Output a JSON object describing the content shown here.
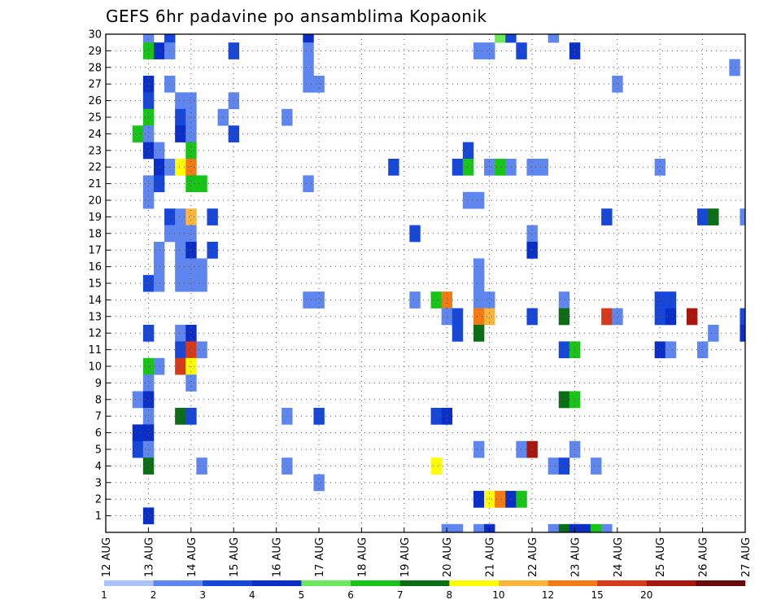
{
  "chart_data": {
    "type": "heatmap",
    "title": "GEFS 6hr padavine po ansamblima Kopaonik",
    "xlabel": "",
    "ylabel": "",
    "x_tick_labels": [
      "12 AUG",
      "13 AUG",
      "14 AUG",
      "15 AUG",
      "16 AUG",
      "17 AUG",
      "18 AUG",
      "19 AUG",
      "20 AUG",
      "21 AUG",
      "22 AUG",
      "23 AUG",
      "24 AUG",
      "25 AUG",
      "26 AUG",
      "27 AUG"
    ],
    "y_tick_labels": [
      "1",
      "2",
      "3",
      "4",
      "5",
      "6",
      "7",
      "8",
      "9",
      "10",
      "11",
      "12",
      "13",
      "14",
      "15",
      "16",
      "17",
      "18",
      "19",
      "20",
      "21",
      "22",
      "23",
      "24",
      "25",
      "26",
      "27",
      "28",
      "29",
      "30"
    ],
    "xlim": [
      0,
      60
    ],
    "ylim": [
      0,
      30
    ],
    "grid": true,
    "x_unit": "6-hour step index from 12 AUG 00Z",
    "colorbar": {
      "labels": [
        "1",
        "2",
        "3",
        "4",
        "5",
        "6",
        "7",
        "8",
        "10",
        "12",
        "15",
        "20"
      ],
      "colors": [
        "#adc3ff",
        "#5e86ee",
        "#1747d9",
        "#0a2ec8",
        "#6ce85c",
        "#18c418",
        "#0b6d16",
        "#ffff00",
        "#ffb43a",
        "#f47a14",
        "#d63a18",
        "#a8160e",
        "#6b0a0a"
      ]
    },
    "cells": [
      [
        4,
        30,
        1
      ],
      [
        6,
        30,
        2
      ],
      [
        19,
        30,
        3
      ],
      [
        37,
        30,
        4
      ],
      [
        38,
        30,
        2
      ],
      [
        42,
        30,
        1
      ],
      [
        4,
        29,
        5
      ],
      [
        5,
        29,
        3
      ],
      [
        6,
        29,
        1
      ],
      [
        12,
        29,
        2
      ],
      [
        19,
        29,
        1
      ],
      [
        35,
        29,
        1
      ],
      [
        36,
        29,
        1
      ],
      [
        39,
        29,
        2
      ],
      [
        44,
        29,
        3
      ],
      [
        19,
        28,
        1
      ],
      [
        59,
        28,
        1
      ],
      [
        4,
        27,
        3
      ],
      [
        6,
        27,
        1
      ],
      [
        19,
        27,
        1
      ],
      [
        20,
        27,
        1
      ],
      [
        48,
        27,
        1
      ],
      [
        4,
        26,
        2
      ],
      [
        7,
        26,
        1
      ],
      [
        8,
        26,
        1
      ],
      [
        12,
        26,
        1
      ],
      [
        4,
        25,
        5
      ],
      [
        7,
        25,
        2
      ],
      [
        8,
        25,
        1
      ],
      [
        11,
        25,
        1
      ],
      [
        17,
        25,
        1
      ],
      [
        3,
        24,
        5
      ],
      [
        4,
        24,
        1
      ],
      [
        7,
        24,
        3
      ],
      [
        8,
        24,
        1
      ],
      [
        12,
        24,
        2
      ],
      [
        4,
        23,
        3
      ],
      [
        5,
        23,
        1
      ],
      [
        8,
        23,
        5
      ],
      [
        34,
        23,
        2
      ],
      [
        5,
        22,
        3
      ],
      [
        6,
        22,
        1
      ],
      [
        7,
        22,
        7
      ],
      [
        8,
        22,
        9
      ],
      [
        27,
        22,
        2
      ],
      [
        33,
        22,
        2
      ],
      [
        34,
        22,
        5
      ],
      [
        36,
        22,
        1
      ],
      [
        37,
        22,
        5
      ],
      [
        38,
        22,
        1
      ],
      [
        40,
        22,
        1
      ],
      [
        41,
        22,
        1
      ],
      [
        52,
        22,
        1
      ],
      [
        4,
        21,
        1
      ],
      [
        5,
        21,
        2
      ],
      [
        8,
        21,
        5
      ],
      [
        9,
        21,
        5
      ],
      [
        19,
        21,
        1
      ],
      [
        4,
        20,
        1
      ],
      [
        34,
        20,
        1
      ],
      [
        35,
        20,
        1
      ],
      [
        6,
        19,
        2
      ],
      [
        7,
        19,
        1
      ],
      [
        8,
        19,
        8
      ],
      [
        10,
        19,
        2
      ],
      [
        47,
        19,
        2
      ],
      [
        56,
        19,
        2
      ],
      [
        57,
        19,
        6
      ],
      [
        60,
        19,
        1
      ],
      [
        6,
        18,
        1
      ],
      [
        7,
        18,
        1
      ],
      [
        8,
        18,
        1
      ],
      [
        29,
        18,
        2
      ],
      [
        40,
        18,
        1
      ],
      [
        5,
        17,
        1
      ],
      [
        7,
        17,
        1
      ],
      [
        8,
        17,
        3
      ],
      [
        10,
        17,
        2
      ],
      [
        40,
        17,
        3
      ],
      [
        5,
        16,
        1
      ],
      [
        7,
        16,
        1
      ],
      [
        8,
        16,
        1
      ],
      [
        9,
        16,
        1
      ],
      [
        35,
        16,
        1
      ],
      [
        4,
        15,
        2
      ],
      [
        5,
        15,
        1
      ],
      [
        7,
        15,
        1
      ],
      [
        8,
        15,
        1
      ],
      [
        9,
        15,
        1
      ],
      [
        35,
        15,
        1
      ],
      [
        19,
        14,
        1
      ],
      [
        20,
        14,
        1
      ],
      [
        29,
        14,
        1
      ],
      [
        31,
        14,
        5
      ],
      [
        32,
        14,
        9
      ],
      [
        35,
        14,
        1
      ],
      [
        36,
        14,
        1
      ],
      [
        43,
        14,
        1
      ],
      [
        52,
        14,
        2
      ],
      [
        53,
        14,
        2
      ],
      [
        32,
        13,
        1
      ],
      [
        33,
        13,
        2
      ],
      [
        35,
        13,
        9
      ],
      [
        36,
        13,
        8
      ],
      [
        40,
        13,
        2
      ],
      [
        43,
        13,
        6
      ],
      [
        47,
        13,
        10
      ],
      [
        48,
        13,
        1
      ],
      [
        52,
        13,
        2
      ],
      [
        53,
        13,
        3
      ],
      [
        55,
        13,
        11
      ],
      [
        60,
        13,
        2
      ],
      [
        4,
        12,
        2
      ],
      [
        7,
        12,
        1
      ],
      [
        8,
        12,
        3
      ],
      [
        33,
        12,
        2
      ],
      [
        35,
        12,
        6
      ],
      [
        57,
        12,
        1
      ],
      [
        60,
        12,
        3
      ],
      [
        7,
        11,
        2
      ],
      [
        8,
        11,
        10
      ],
      [
        9,
        11,
        1
      ],
      [
        43,
        11,
        2
      ],
      [
        44,
        11,
        5
      ],
      [
        52,
        11,
        3
      ],
      [
        53,
        11,
        1
      ],
      [
        56,
        11,
        1
      ],
      [
        4,
        10,
        5
      ],
      [
        5,
        10,
        1
      ],
      [
        7,
        10,
        10
      ],
      [
        8,
        10,
        7
      ],
      [
        4,
        9,
        1
      ],
      [
        8,
        9,
        1
      ],
      [
        3,
        8,
        1
      ],
      [
        4,
        8,
        3
      ],
      [
        43,
        8,
        6
      ],
      [
        44,
        8,
        5
      ],
      [
        4,
        7,
        1
      ],
      [
        7,
        7,
        6
      ],
      [
        8,
        7,
        2
      ],
      [
        17,
        7,
        1
      ],
      [
        20,
        7,
        2
      ],
      [
        31,
        7,
        2
      ],
      [
        32,
        7,
        3
      ],
      [
        3,
        6,
        3
      ],
      [
        4,
        6,
        3
      ],
      [
        3,
        5,
        2
      ],
      [
        4,
        5,
        1
      ],
      [
        35,
        5,
        1
      ],
      [
        39,
        5,
        1
      ],
      [
        40,
        5,
        11
      ],
      [
        44,
        5,
        1
      ],
      [
        4,
        4,
        6
      ],
      [
        9,
        4,
        1
      ],
      [
        17,
        4,
        1
      ],
      [
        31,
        4,
        7
      ],
      [
        42,
        4,
        1
      ],
      [
        43,
        4,
        2
      ],
      [
        46,
        4,
        1
      ],
      [
        20,
        3,
        1
      ],
      [
        35,
        2,
        3
      ],
      [
        36,
        2,
        7
      ],
      [
        37,
        2,
        9
      ],
      [
        38,
        2,
        3
      ],
      [
        39,
        2,
        5
      ],
      [
        4,
        1,
        3
      ],
      [
        32,
        0,
        1
      ],
      [
        33,
        0,
        1
      ],
      [
        35,
        0,
        1
      ],
      [
        36,
        0,
        3
      ],
      [
        42,
        0,
        1
      ],
      [
        43,
        0,
        6
      ],
      [
        44,
        0,
        3
      ],
      [
        45,
        0,
        3
      ],
      [
        46,
        0,
        5
      ],
      [
        47,
        0,
        1
      ]
    ]
  }
}
